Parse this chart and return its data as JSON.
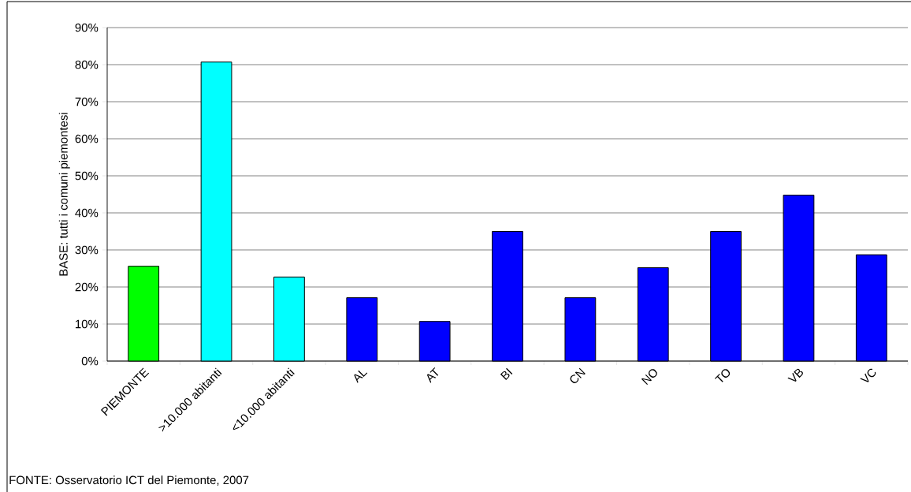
{
  "chart_data": {
    "type": "bar",
    "ylabel": "BASE: tutti i comuni piemontesi",
    "categories": [
      "PIEMONTE",
      ">10.000 abitanti",
      "<10.000 abitanti",
      "AL",
      "AT",
      "BI",
      "CN",
      "NO",
      "TO",
      "VB",
      "VC"
    ],
    "values": [
      25.6,
      80.7,
      22.7,
      17.1,
      10.7,
      35.0,
      17.1,
      25.2,
      35.0,
      44.8,
      28.7
    ],
    "colors": [
      "#00ff00",
      "#00ffff",
      "#00ffff",
      "#0000ff",
      "#0000ff",
      "#0000ff",
      "#0000ff",
      "#0000ff",
      "#0000ff",
      "#0000ff",
      "#0000ff"
    ],
    "ylim": [
      0,
      90
    ],
    "yticks": [
      {
        "value": 0,
        "label": "0%"
      },
      {
        "value": 10,
        "label": "10%"
      },
      {
        "value": 20,
        "label": "20%"
      },
      {
        "value": 30,
        "label": "30%"
      },
      {
        "value": 40,
        "label": "40%"
      },
      {
        "value": 50,
        "label": "50%"
      },
      {
        "value": 60,
        "label": "60%"
      },
      {
        "value": 70,
        "label": "70%"
      },
      {
        "value": 80,
        "label": "80%"
      },
      {
        "value": 90,
        "label": "90%"
      }
    ],
    "grid": "y",
    "annotations": [
      "FONTE: Osservatorio ICT del Piemonte, 2007"
    ]
  }
}
